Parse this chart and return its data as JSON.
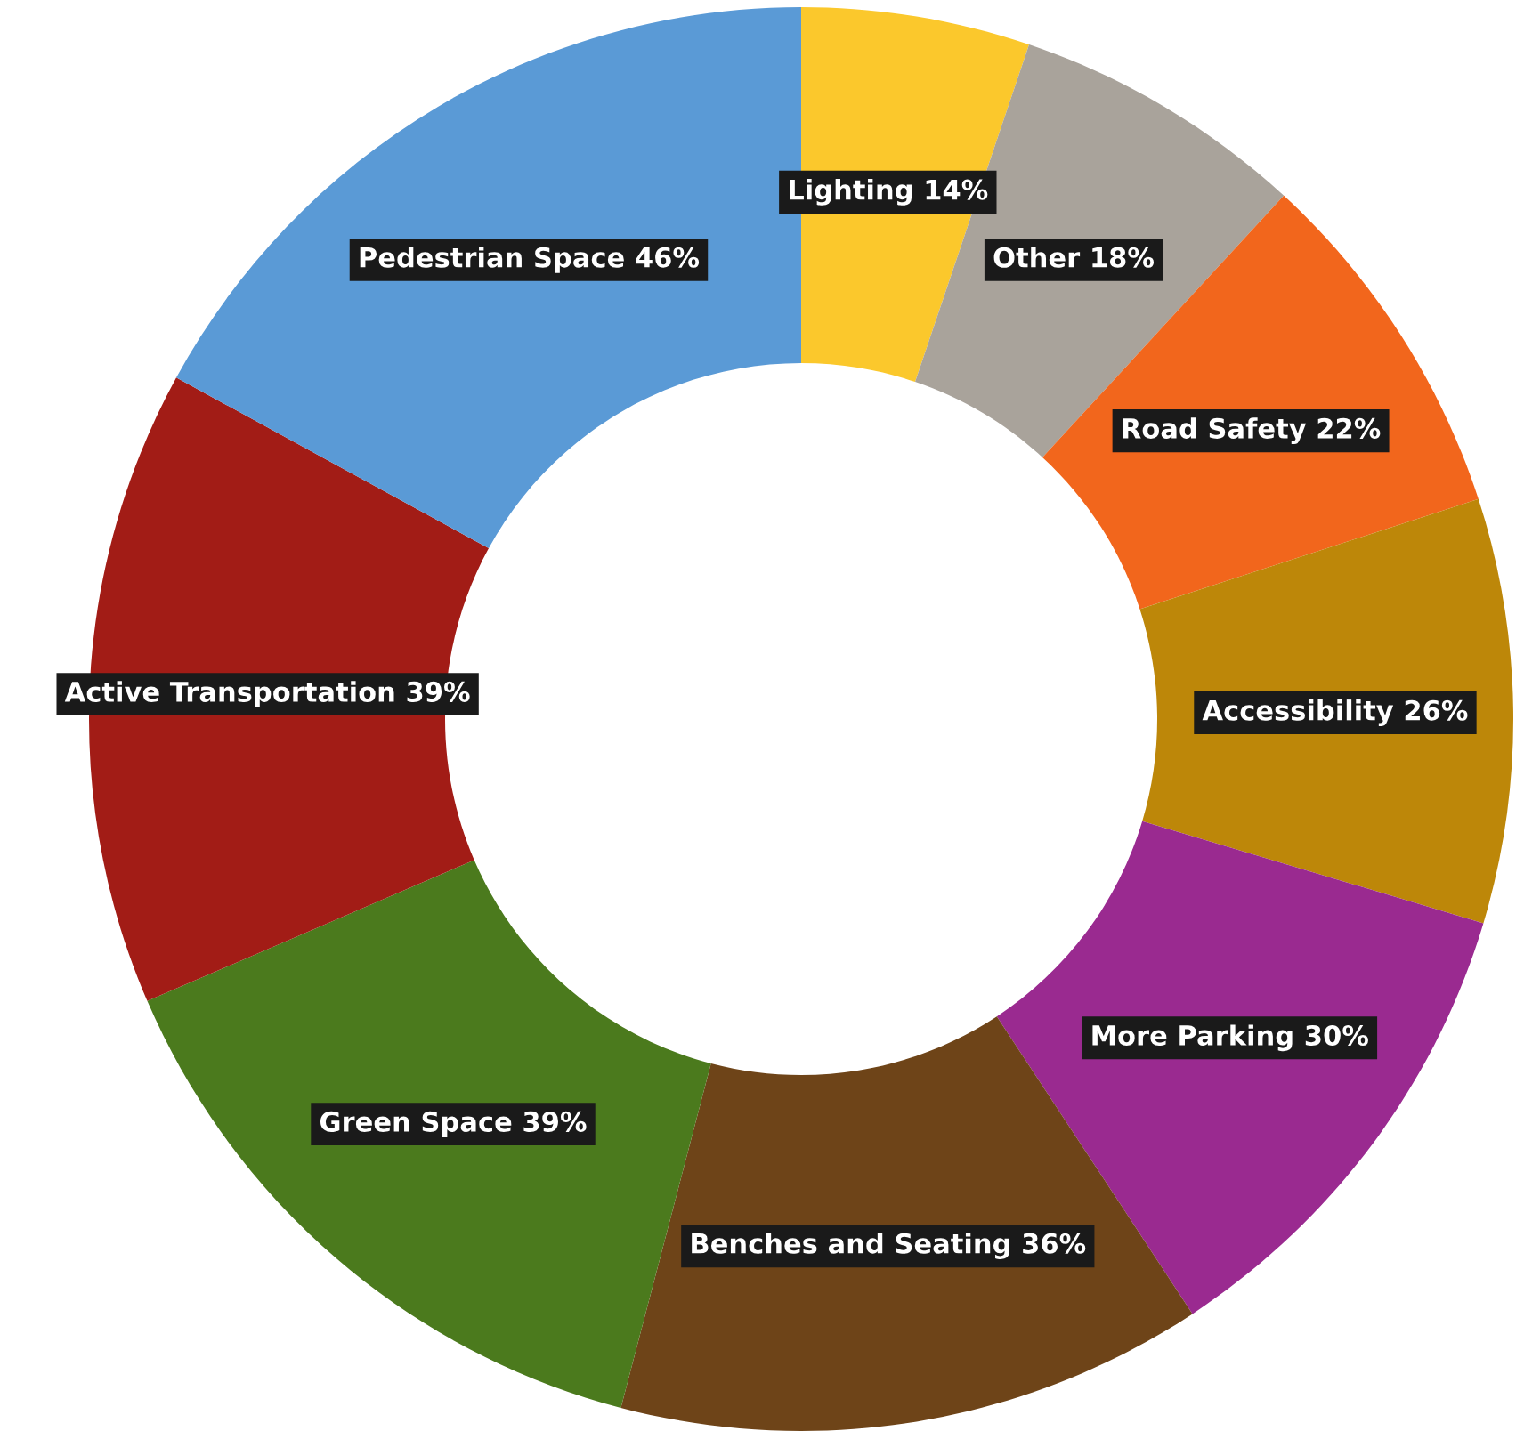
{
  "chart_data": {
    "type": "donut",
    "categories": [
      "Lighting",
      "Other",
      "Road Safety",
      "Accessibility",
      "More Parking",
      "Benches and Seating",
      "Green Space",
      "Active Transportation",
      "Pedestrian Space"
    ],
    "values": [
      14,
      18,
      22,
      26,
      30,
      36,
      39,
      39,
      46
    ],
    "value_labels": [
      "14%",
      "18%",
      "22%",
      "26%",
      "30%",
      "36%",
      "39%",
      "39%",
      "46%"
    ],
    "colors": [
      "#fbc82c",
      "#a9a39b",
      "#f2661c",
      "#bd8709",
      "#9a2a90",
      "#6e4418",
      "#4b7a1d",
      "#a21c16",
      "#5a9ad6"
    ],
    "legend": false
  }
}
